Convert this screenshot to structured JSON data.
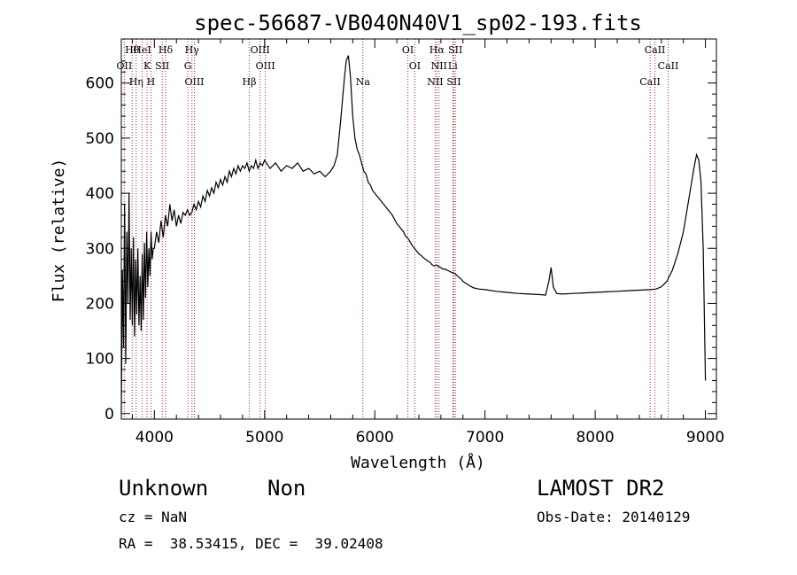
{
  "chart_data": {
    "type": "line",
    "title": "spec-56687-VB040N40V1_sp02-193.fits",
    "xlabel": "Wavelength (Å)",
    "ylabel": "Flux (relative)",
    "xlim": [
      3700,
      9100
    ],
    "ylim": [
      -10,
      680
    ],
    "x_ticks": [
      4000,
      5000,
      6000,
      7000,
      8000,
      9000
    ],
    "y_ticks": [
      0,
      100,
      200,
      300,
      400,
      500,
      600
    ],
    "series": [
      {
        "points": [
          [
            3700,
            0
          ],
          [
            3710,
            260
          ],
          [
            3720,
            120
          ],
          [
            3730,
            380
          ],
          [
            3740,
            90
          ],
          [
            3750,
            330
          ],
          [
            3760,
            200
          ],
          [
            3770,
            400
          ],
          [
            3780,
            170
          ],
          [
            3790,
            300
          ],
          [
            3800,
            160
          ],
          [
            3810,
            320
          ],
          [
            3820,
            140
          ],
          [
            3830,
            280
          ],
          [
            3840,
            180
          ],
          [
            3850,
            300
          ],
          [
            3860,
            160
          ],
          [
            3870,
            250
          ],
          [
            3880,
            150
          ],
          [
            3890,
            290
          ],
          [
            3900,
            170
          ],
          [
            3910,
            310
          ],
          [
            3920,
            210
          ],
          [
            3930,
            330
          ],
          [
            3940,
            230
          ],
          [
            3950,
            300
          ],
          [
            3960,
            250
          ],
          [
            3970,
            330
          ],
          [
            3980,
            280
          ],
          [
            3990,
            300
          ],
          [
            4000,
            300
          ],
          [
            4020,
            330
          ],
          [
            4040,
            310
          ],
          [
            4060,
            350
          ],
          [
            4080,
            320
          ],
          [
            4100,
            360
          ],
          [
            4120,
            340
          ],
          [
            4140,
            380
          ],
          [
            4160,
            350
          ],
          [
            4180,
            370
          ],
          [
            4200,
            340
          ],
          [
            4220,
            360
          ],
          [
            4240,
            345
          ],
          [
            4260,
            365
          ],
          [
            4280,
            360
          ],
          [
            4300,
            370
          ],
          [
            4320,
            360
          ],
          [
            4340,
            365
          ],
          [
            4360,
            380
          ],
          [
            4380,
            370
          ],
          [
            4400,
            385
          ],
          [
            4420,
            375
          ],
          [
            4440,
            395
          ],
          [
            4460,
            385
          ],
          [
            4480,
            405
          ],
          [
            4500,
            395
          ],
          [
            4520,
            410
          ],
          [
            4540,
            400
          ],
          [
            4560,
            420
          ],
          [
            4580,
            410
          ],
          [
            4600,
            425
          ],
          [
            4620,
            415
          ],
          [
            4640,
            430
          ],
          [
            4660,
            420
          ],
          [
            4680,
            440
          ],
          [
            4700,
            430
          ],
          [
            4720,
            445
          ],
          [
            4740,
            435
          ],
          [
            4760,
            450
          ],
          [
            4780,
            440
          ],
          [
            4800,
            450
          ],
          [
            4820,
            445
          ],
          [
            4840,
            455
          ],
          [
            4860,
            440
          ],
          [
            4880,
            450
          ],
          [
            4900,
            445
          ],
          [
            4920,
            460
          ],
          [
            4940,
            445
          ],
          [
            4960,
            455
          ],
          [
            4980,
            450
          ],
          [
            5000,
            460
          ],
          [
            5050,
            445
          ],
          [
            5100,
            455
          ],
          [
            5150,
            440
          ],
          [
            5200,
            450
          ],
          [
            5250,
            445
          ],
          [
            5300,
            455
          ],
          [
            5350,
            440
          ],
          [
            5400,
            445
          ],
          [
            5450,
            435
          ],
          [
            5500,
            440
          ],
          [
            5550,
            430
          ],
          [
            5600,
            440
          ],
          [
            5630,
            450
          ],
          [
            5660,
            470
          ],
          [
            5690,
            530
          ],
          [
            5720,
            600
          ],
          [
            5740,
            640
          ],
          [
            5760,
            650
          ],
          [
            5780,
            610
          ],
          [
            5800,
            540
          ],
          [
            5820,
            500
          ],
          [
            5840,
            480
          ],
          [
            5860,
            470
          ],
          [
            5880,
            455
          ],
          [
            5900,
            440
          ],
          [
            5920,
            435
          ],
          [
            5940,
            420
          ],
          [
            5960,
            415
          ],
          [
            5980,
            405
          ],
          [
            6000,
            400
          ],
          [
            6020,
            395
          ],
          [
            6040,
            390
          ],
          [
            6060,
            385
          ],
          [
            6080,
            380
          ],
          [
            6100,
            375
          ],
          [
            6120,
            370
          ],
          [
            6140,
            365
          ],
          [
            6160,
            360
          ],
          [
            6180,
            352
          ],
          [
            6200,
            345
          ],
          [
            6220,
            340
          ],
          [
            6240,
            335
          ],
          [
            6260,
            330
          ],
          [
            6280,
            322
          ],
          [
            6300,
            318
          ],
          [
            6320,
            312
          ],
          [
            6340,
            305
          ],
          [
            6360,
            300
          ],
          [
            6380,
            295
          ],
          [
            6400,
            290
          ],
          [
            6420,
            287
          ],
          [
            6440,
            283
          ],
          [
            6460,
            280
          ],
          [
            6480,
            277
          ],
          [
            6500,
            275
          ],
          [
            6520,
            270
          ],
          [
            6540,
            268
          ],
          [
            6560,
            270
          ],
          [
            6580,
            267
          ],
          [
            6600,
            265
          ],
          [
            6620,
            262
          ],
          [
            6640,
            262
          ],
          [
            6660,
            260
          ],
          [
            6680,
            258
          ],
          [
            6700,
            256
          ],
          [
            6720,
            255
          ],
          [
            6740,
            252
          ],
          [
            6760,
            248
          ],
          [
            6780,
            245
          ],
          [
            6800,
            240
          ],
          [
            6820,
            237
          ],
          [
            6840,
            235
          ],
          [
            6860,
            232
          ],
          [
            6880,
            230
          ],
          [
            6900,
            228
          ],
          [
            6950,
            226
          ],
          [
            7000,
            225
          ],
          [
            7100,
            222
          ],
          [
            7200,
            220
          ],
          [
            7300,
            218
          ],
          [
            7400,
            217
          ],
          [
            7500,
            216
          ],
          [
            7550,
            215
          ],
          [
            7580,
            240
          ],
          [
            7600,
            265
          ],
          [
            7620,
            230
          ],
          [
            7650,
            218
          ],
          [
            7700,
            217
          ],
          [
            7800,
            218
          ],
          [
            7900,
            219
          ],
          [
            8000,
            220
          ],
          [
            8100,
            221
          ],
          [
            8200,
            222
          ],
          [
            8300,
            223
          ],
          [
            8400,
            224
          ],
          [
            8500,
            225
          ],
          [
            8550,
            226
          ],
          [
            8600,
            230
          ],
          [
            8650,
            240
          ],
          [
            8700,
            260
          ],
          [
            8750,
            290
          ],
          [
            8800,
            330
          ],
          [
            8850,
            390
          ],
          [
            8900,
            450
          ],
          [
            8920,
            470
          ],
          [
            8940,
            460
          ],
          [
            8960,
            420
          ],
          [
            8980,
            300
          ],
          [
            9000,
            60
          ]
        ]
      }
    ],
    "lines": [
      {
        "label": "Hθ",
        "wl": 3798
      },
      {
        "label": "OII",
        "wl": 3727
      },
      {
        "label": "Hη",
        "wl": 3835
      },
      {
        "label": "HeI",
        "wl": 3889
      },
      {
        "label": "K",
        "wl": 3934
      },
      {
        "label": "H",
        "wl": 3969
      },
      {
        "label": "Hδ",
        "wl": 4102
      },
      {
        "label": "SII",
        "wl": 4072
      },
      {
        "label": "OIII",
        "wl": 4363
      },
      {
        "label": "Hγ",
        "wl": 4341
      },
      {
        "label": "G",
        "wl": 4304
      },
      {
        "label": "Hβ",
        "wl": 4861
      },
      {
        "label": "OIII",
        "wl": 4959
      },
      {
        "label": "OIII",
        "wl": 5007
      },
      {
        "label": "Na",
        "wl": 5892
      },
      {
        "label": "OI",
        "wl": 6300
      },
      {
        "label": "OI",
        "wl": 6363
      },
      {
        "label": "NII",
        "wl": 6548
      },
      {
        "label": "Hα",
        "wl": 6563
      },
      {
        "label": "NII",
        "wl": 6583
      },
      {
        "label": "SII",
        "wl": 6717
      },
      {
        "label": "SII",
        "wl": 6731
      },
      {
        "label": "Li",
        "wl": 6708
      },
      {
        "label": "CaII",
        "wl": 8498
      },
      {
        "label": "CaII",
        "wl": 8542
      },
      {
        "label": "CaII",
        "wl": 8662
      }
    ]
  },
  "info": {
    "class": "Unknown",
    "subclass": "Non",
    "survey": "LAMOST DR2",
    "cz": "cz = NaN",
    "obs_date": "Obs-Date: 20140129",
    "radec": "RA =  38.53415, DEC =  39.02408"
  },
  "colors": {
    "spectrum": "#000000",
    "line_marker": "#b22222",
    "background": "#ffffff"
  }
}
